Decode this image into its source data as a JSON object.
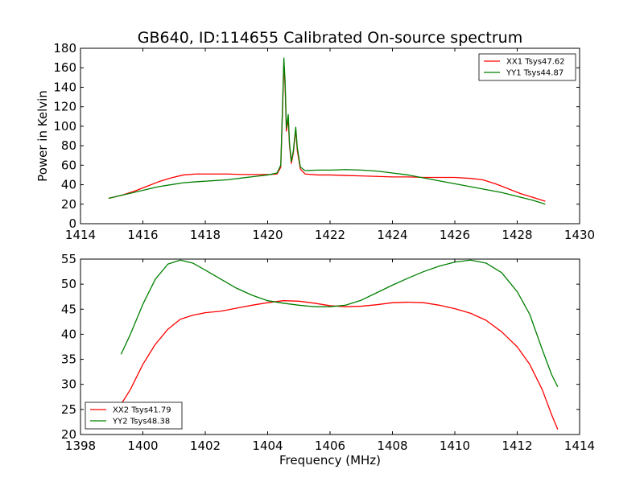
{
  "figure": {
    "title": "GB640, ID:114655 Calibrated On-source spectrum",
    "background": "#ffffff"
  },
  "chart_data": [
    {
      "type": "line",
      "title": "GB640, ID:114655 Calibrated On-source spectrum",
      "xlabel": "",
      "ylabel": "Power in Kelvin",
      "xlim": [
        1414,
        1430
      ],
      "ylim": [
        0,
        180
      ],
      "xticks": [
        1414,
        1416,
        1418,
        1420,
        1422,
        1424,
        1426,
        1428,
        1430
      ],
      "yticks": [
        0,
        20,
        40,
        60,
        80,
        100,
        120,
        140,
        160,
        180
      ],
      "grid": false,
      "legend_position": "top-right",
      "series": [
        {
          "name": "XX1 Tsys47.62",
          "color": "#ff0000",
          "points": [
            [
              1414.9,
              26
            ],
            [
              1415.3,
              29
            ],
            [
              1415.7,
              33
            ],
            [
              1416.1,
              38
            ],
            [
              1416.5,
              43
            ],
            [
              1416.9,
              47
            ],
            [
              1417.3,
              50
            ],
            [
              1417.7,
              51
            ],
            [
              1418.2,
              51
            ],
            [
              1418.7,
              51
            ],
            [
              1419.2,
              50.5
            ],
            [
              1419.7,
              50.5
            ],
            [
              1420.1,
              50.5
            ],
            [
              1420.3,
              51
            ],
            [
              1420.42,
              58
            ],
            [
              1420.48,
              120
            ],
            [
              1420.52,
              165
            ],
            [
              1420.56,
              140
            ],
            [
              1420.6,
              95
            ],
            [
              1420.66,
              108
            ],
            [
              1420.7,
              80
            ],
            [
              1420.76,
              62
            ],
            [
              1420.82,
              72
            ],
            [
              1420.9,
              97
            ],
            [
              1420.95,
              75
            ],
            [
              1421.05,
              56
            ],
            [
              1421.2,
              51
            ],
            [
              1421.6,
              50
            ],
            [
              1422.0,
              50
            ],
            [
              1422.5,
              49.5
            ],
            [
              1423.0,
              49
            ],
            [
              1423.5,
              48.5
            ],
            [
              1424.0,
              48
            ],
            [
              1424.5,
              48
            ],
            [
              1425.0,
              47.5
            ],
            [
              1425.5,
              47.5
            ],
            [
              1426.0,
              47.5
            ],
            [
              1426.5,
              46.5
            ],
            [
              1426.9,
              45
            ],
            [
              1427.3,
              41
            ],
            [
              1427.7,
              36
            ],
            [
              1428.1,
              31
            ],
            [
              1428.5,
              27
            ],
            [
              1428.9,
              23
            ]
          ]
        },
        {
          "name": "YY1 Tsys44.87",
          "color": "#008000",
          "points": [
            [
              1414.9,
              26
            ],
            [
              1415.3,
              29
            ],
            [
              1415.7,
              32
            ],
            [
              1416.1,
              35
            ],
            [
              1416.5,
              38
            ],
            [
              1416.9,
              40
            ],
            [
              1417.3,
              42
            ],
            [
              1417.7,
              43
            ],
            [
              1418.2,
              44
            ],
            [
              1418.7,
              45
            ],
            [
              1419.2,
              47
            ],
            [
              1419.6,
              48.5
            ],
            [
              1420.0,
              50
            ],
            [
              1420.3,
              52
            ],
            [
              1420.42,
              60
            ],
            [
              1420.48,
              125
            ],
            [
              1420.52,
              170
            ],
            [
              1420.56,
              145
            ],
            [
              1420.6,
              98
            ],
            [
              1420.66,
              112
            ],
            [
              1420.7,
              82
            ],
            [
              1420.76,
              64
            ],
            [
              1420.82,
              74
            ],
            [
              1420.9,
              99
            ],
            [
              1420.95,
              78
            ],
            [
              1421.05,
              58
            ],
            [
              1421.2,
              54.5
            ],
            [
              1421.6,
              55
            ],
            [
              1422.0,
              55
            ],
            [
              1422.5,
              55.5
            ],
            [
              1423.0,
              55
            ],
            [
              1423.5,
              54
            ],
            [
              1424.0,
              52
            ],
            [
              1424.5,
              50
            ],
            [
              1425.0,
              47
            ],
            [
              1425.5,
              44
            ],
            [
              1426.0,
              41
            ],
            [
              1426.5,
              38
            ],
            [
              1427.0,
              35
            ],
            [
              1427.5,
              32
            ],
            [
              1428.0,
              28
            ],
            [
              1428.5,
              24
            ],
            [
              1428.9,
              20
            ]
          ]
        }
      ]
    },
    {
      "type": "line",
      "title": "",
      "xlabel": "Frequency (MHz)",
      "ylabel": "",
      "xlim": [
        1398,
        1414
      ],
      "ylim": [
        20,
        55
      ],
      "xticks": [
        1398,
        1400,
        1402,
        1404,
        1406,
        1408,
        1410,
        1412,
        1414
      ],
      "yticks": [
        20,
        25,
        30,
        35,
        40,
        45,
        50,
        55
      ],
      "grid": false,
      "legend_position": "bottom-left",
      "series": [
        {
          "name": "XX2 Tsys41.79",
          "color": "#ff0000",
          "points": [
            [
              1399.3,
              26
            ],
            [
              1399.6,
              29
            ],
            [
              1400.0,
              34
            ],
            [
              1400.4,
              38
            ],
            [
              1400.8,
              41
            ],
            [
              1401.2,
              43
            ],
            [
              1401.6,
              43.8
            ],
            [
              1402.0,
              44.3
            ],
            [
              1402.5,
              44.6
            ],
            [
              1403.0,
              45.2
            ],
            [
              1403.5,
              45.8
            ],
            [
              1404.0,
              46.3
            ],
            [
              1404.5,
              46.7
            ],
            [
              1405.0,
              46.6
            ],
            [
              1405.5,
              46.2
            ],
            [
              1406.0,
              45.7
            ],
            [
              1406.5,
              45.5
            ],
            [
              1407.0,
              45.6
            ],
            [
              1407.5,
              45.9
            ],
            [
              1408.0,
              46.3
            ],
            [
              1408.5,
              46.4
            ],
            [
              1409.0,
              46.3
            ],
            [
              1409.5,
              45.8
            ],
            [
              1410.0,
              45.1
            ],
            [
              1410.5,
              44.2
            ],
            [
              1411.0,
              42.8
            ],
            [
              1411.5,
              40.5
            ],
            [
              1412.0,
              37.5
            ],
            [
              1412.4,
              34
            ],
            [
              1412.8,
              29
            ],
            [
              1413.1,
              24
            ],
            [
              1413.3,
              21
            ]
          ]
        },
        {
          "name": "YY2 Tsys48.38",
          "color": "#008000",
          "points": [
            [
              1399.3,
              36
            ],
            [
              1399.6,
              40
            ],
            [
              1400.0,
              46
            ],
            [
              1400.4,
              51
            ],
            [
              1400.8,
              54
            ],
            [
              1401.2,
              54.8
            ],
            [
              1401.6,
              54.2
            ],
            [
              1402.0,
              52.8
            ],
            [
              1402.5,
              51
            ],
            [
              1403.0,
              49.2
            ],
            [
              1403.5,
              47.8
            ],
            [
              1404.0,
              46.7
            ],
            [
              1404.5,
              46.2
            ],
            [
              1405.0,
              45.8
            ],
            [
              1405.5,
              45.5
            ],
            [
              1406.0,
              45.5
            ],
            [
              1406.5,
              45.8
            ],
            [
              1407.0,
              46.8
            ],
            [
              1407.5,
              48.3
            ],
            [
              1408.0,
              49.8
            ],
            [
              1408.5,
              51.2
            ],
            [
              1409.0,
              52.5
            ],
            [
              1409.5,
              53.6
            ],
            [
              1410.0,
              54.4
            ],
            [
              1410.5,
              54.8
            ],
            [
              1411.0,
              54.2
            ],
            [
              1411.5,
              52.3
            ],
            [
              1412.0,
              48.5
            ],
            [
              1412.4,
              44
            ],
            [
              1412.8,
              37
            ],
            [
              1413.1,
              32
            ],
            [
              1413.3,
              29.5
            ]
          ]
        }
      ]
    }
  ]
}
